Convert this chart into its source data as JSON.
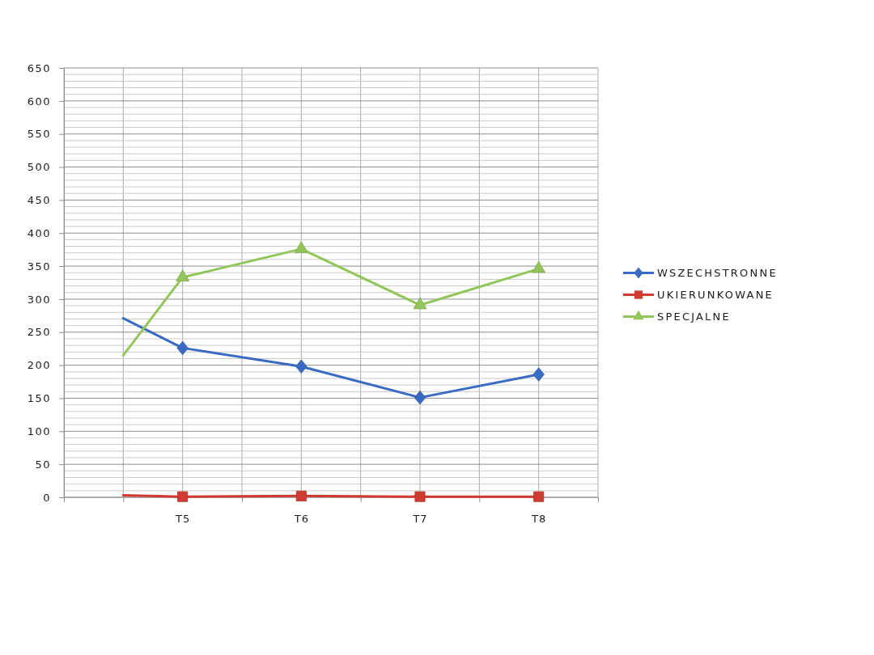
{
  "chart_data": {
    "type": "line",
    "categories": [
      null,
      null,
      "T5",
      null,
      "T6",
      null,
      "T7",
      null,
      "T8",
      null
    ],
    "ylim": [
      0,
      650
    ],
    "yticks": [
      0,
      {
        "value": 10,
        "label": null
      },
      {
        "value": 20,
        "label": null
      },
      {
        "value": 30,
        "label": null
      },
      {
        "value": 40,
        "label": null
      },
      50,
      {
        "value": 60,
        "label": null
      },
      {
        "value": 70,
        "label": null
      },
      {
        "value": 80,
        "label": null
      },
      {
        "value": 90,
        "label": null
      },
      100,
      {
        "value": 110,
        "label": null
      },
      {
        "value": 120,
        "label": null
      },
      {
        "value": 130,
        "label": null
      },
      {
        "value": 140,
        "label": null
      },
      150,
      {
        "value": 160,
        "label": null
      },
      {
        "value": 170,
        "label": null
      },
      {
        "value": 180,
        "label": null
      },
      {
        "value": 190,
        "label": null
      },
      200,
      {
        "value": 210,
        "label": null
      },
      {
        "value": 220,
        "label": null
      },
      {
        "value": 230,
        "label": null
      },
      {
        "value": 240,
        "label": null
      },
      250,
      {
        "value": 260,
        "label": null
      },
      {
        "value": 270,
        "label": null
      },
      {
        "value": 280,
        "label": null
      },
      {
        "value": 290,
        "label": null
      },
      300,
      {
        "value": 310,
        "label": null
      },
      {
        "value": 320,
        "label": null
      },
      {
        "value": 330,
        "label": null
      },
      {
        "value": 340,
        "label": null
      },
      350,
      {
        "value": 360,
        "label": null
      },
      {
        "value": 370,
        "label": null
      },
      {
        "value": 380,
        "label": null
      },
      {
        "value": 390,
        "label": null
      },
      400,
      {
        "value": 410,
        "label": null
      },
      {
        "value": 420,
        "label": null
      },
      {
        "value": 430,
        "label": null
      },
      {
        "value": 440,
        "label": null
      },
      450,
      {
        "value": 460,
        "label": null
      },
      {
        "value": 470,
        "label": null
      },
      {
        "value": 480,
        "label": null
      },
      {
        "value": 490,
        "label": null
      },
      500,
      {
        "value": 510,
        "label": null
      },
      {
        "value": 520,
        "label": null
      },
      {
        "value": 530,
        "label": null
      },
      {
        "value": 540,
        "label": null
      },
      550,
      {
        "value": 560,
        "label": null
      },
      {
        "value": 570,
        "label": null
      },
      {
        "value": 580,
        "label": null
      },
      {
        "value": 590,
        "label": null
      },
      600,
      {
        "value": 610,
        "label": null
      },
      {
        "value": 620,
        "label": null
      },
      {
        "value": 630,
        "label": null
      },
      {
        "value": 640,
        "label": null
      },
      650
    ],
    "grid": true,
    "legend": "right",
    "series": [
      {
        "name": "WSZECHSTRONNE",
        "color": "#3a6bc4",
        "marker": "diamond",
        "values": [
          null,
          271,
          226,
          null,
          198,
          null,
          151,
          null,
          186,
          null
        ]
      },
      {
        "name": "UKIERUNKOWANE",
        "color": "#cf3b30",
        "marker": "square",
        "values": [
          null,
          3,
          1,
          null,
          2,
          null,
          1,
          null,
          1,
          null
        ]
      },
      {
        "name": "SPECJALNE",
        "color": "#92c55a",
        "marker": "triangle",
        "values": [
          null,
          215,
          333,
          null,
          376,
          null,
          291,
          null,
          346,
          null
        ]
      }
    ]
  }
}
